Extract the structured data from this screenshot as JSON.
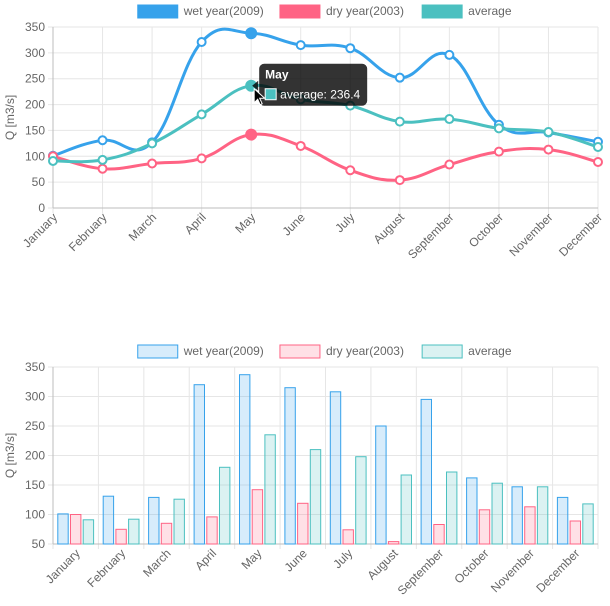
{
  "chart_data": [
    {
      "type": "line",
      "categories": [
        "January",
        "February",
        "March",
        "April",
        "May",
        "June",
        "July",
        "August",
        "September",
        "October",
        "November",
        "December"
      ],
      "series": [
        {
          "name": "wet year(2009)",
          "color": "#36a2eb",
          "values": [
            101,
            131,
            127,
            321,
            338,
            315,
            309,
            252,
            296,
            161,
            146,
            128
          ]
        },
        {
          "name": "dry year(2003)",
          "color": "#ff6384",
          "values": [
            100,
            76,
            86,
            96,
            142,
            120,
            73,
            54,
            84,
            109,
            113,
            89
          ]
        },
        {
          "name": "average",
          "color": "#4bc0c0",
          "values": [
            91,
            93,
            125,
            181,
            236.4,
            210,
            198,
            167,
            172,
            154,
            147,
            118
          ]
        }
      ],
      "ylabel": "Q [m3/s]",
      "yticks": [
        0,
        50,
        100,
        150,
        200,
        250,
        300,
        350
      ],
      "ylim": [
        0,
        350
      ],
      "grid": true,
      "legend": "top",
      "tooltip": {
        "title": "May",
        "text": "average: 236.4",
        "category_index": 4,
        "series_index": 2
      }
    },
    {
      "type": "bar",
      "categories": [
        "January",
        "February",
        "March",
        "April",
        "May",
        "June",
        "July",
        "August",
        "September",
        "October",
        "November",
        "December"
      ],
      "series": [
        {
          "name": "wet year(2009)",
          "color": "#36a2eb",
          "values": [
            101,
            131,
            129,
            320,
            337,
            315,
            308,
            250,
            295,
            162,
            147,
            129
          ]
        },
        {
          "name": "dry year(2003)",
          "color": "#ff6384",
          "values": [
            100,
            75,
            85,
            96,
            142,
            119,
            74,
            54,
            83,
            108,
            113,
            89
          ]
        },
        {
          "name": "average",
          "color": "#4bc0c0",
          "values": [
            91,
            92,
            126,
            180,
            235,
            210,
            198,
            167,
            172,
            153,
            147,
            118
          ]
        }
      ],
      "ylabel": "Q [m3/s]",
      "yticks": [
        50,
        100,
        150,
        200,
        250,
        300,
        350
      ],
      "ylim": [
        50,
        350
      ],
      "grid": true,
      "legend": "top"
    }
  ]
}
